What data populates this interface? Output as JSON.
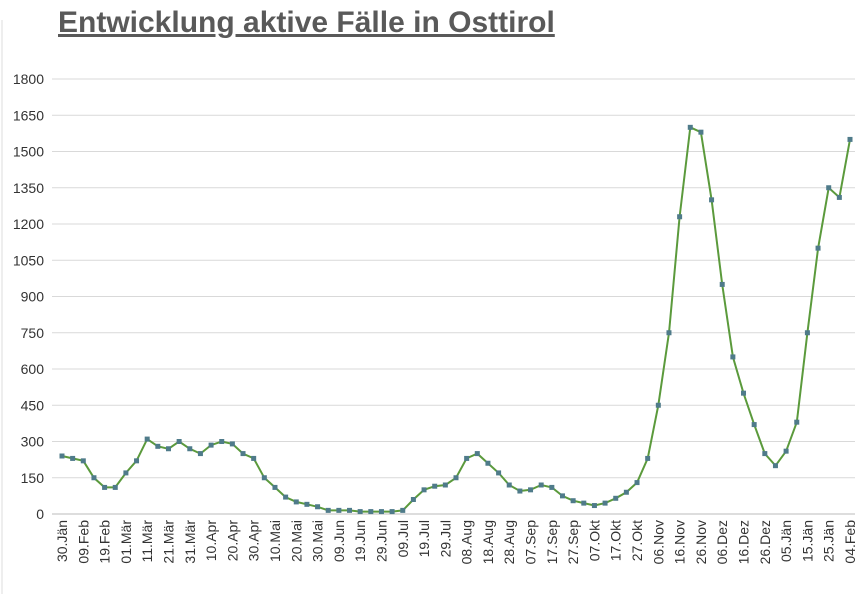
{
  "chart_data": {
    "type": "line",
    "title": "Entwicklung aktive Fälle in Osttirol",
    "categories": [
      "30.Jän",
      null,
      "09.Feb",
      null,
      "19.Feb",
      null,
      "01.Mär",
      null,
      "11.Mär",
      null,
      "21.Mär",
      null,
      "31.Mär",
      null,
      "10.Apr",
      null,
      "20.Apr",
      null,
      "30.Apr",
      null,
      "10.Mai",
      null,
      "20.Mai",
      null,
      "30.Mai",
      null,
      "09.Jun",
      null,
      "19.Jun",
      null,
      "29.Jun",
      null,
      "09.Jul",
      null,
      "19.Jul",
      null,
      "29.Jul",
      null,
      "08.Aug",
      null,
      "18.Aug",
      null,
      "28.Aug",
      null,
      "07.Sep",
      null,
      "17.Sep",
      null,
      "27.Sep",
      null,
      "07.Okt",
      null,
      "17.Okt",
      null,
      "27.Okt",
      null,
      "06.Nov",
      null,
      "16.Nov",
      null,
      "26.Nov",
      null,
      "06.Dez",
      null,
      "16.Dez",
      null,
      "26.Dez",
      null,
      "05.Jän",
      null,
      "15.Jän",
      null,
      "25.Jän",
      null,
      "04.Feb"
    ],
    "series": [
      {
        "name": "aktive Fälle",
        "color": "#5b9a3c",
        "marker_color": "#4f7b8a",
        "values": [
          240,
          230,
          220,
          150,
          110,
          110,
          170,
          220,
          310,
          280,
          270,
          300,
          270,
          250,
          285,
          300,
          290,
          250,
          230,
          150,
          110,
          70,
          50,
          40,
          30,
          15,
          15,
          15,
          10,
          10,
          10,
          10,
          15,
          60,
          100,
          115,
          120,
          150,
          230,
          250,
          210,
          170,
          120,
          95,
          100,
          120,
          110,
          75,
          55,
          45,
          35,
          45,
          65,
          90,
          130,
          230,
          450,
          750,
          1230,
          1600,
          1580,
          1300,
          950,
          650,
          500,
          370,
          250,
          200,
          260,
          380,
          750,
          1100,
          1350,
          1310,
          1550
        ]
      }
    ],
    "ylim": [
      0,
      1800
    ],
    "yticks": [
      0,
      150,
      300,
      450,
      600,
      750,
      900,
      1050,
      1200,
      1350,
      1500,
      1650,
      1800
    ],
    "grid": true
  }
}
